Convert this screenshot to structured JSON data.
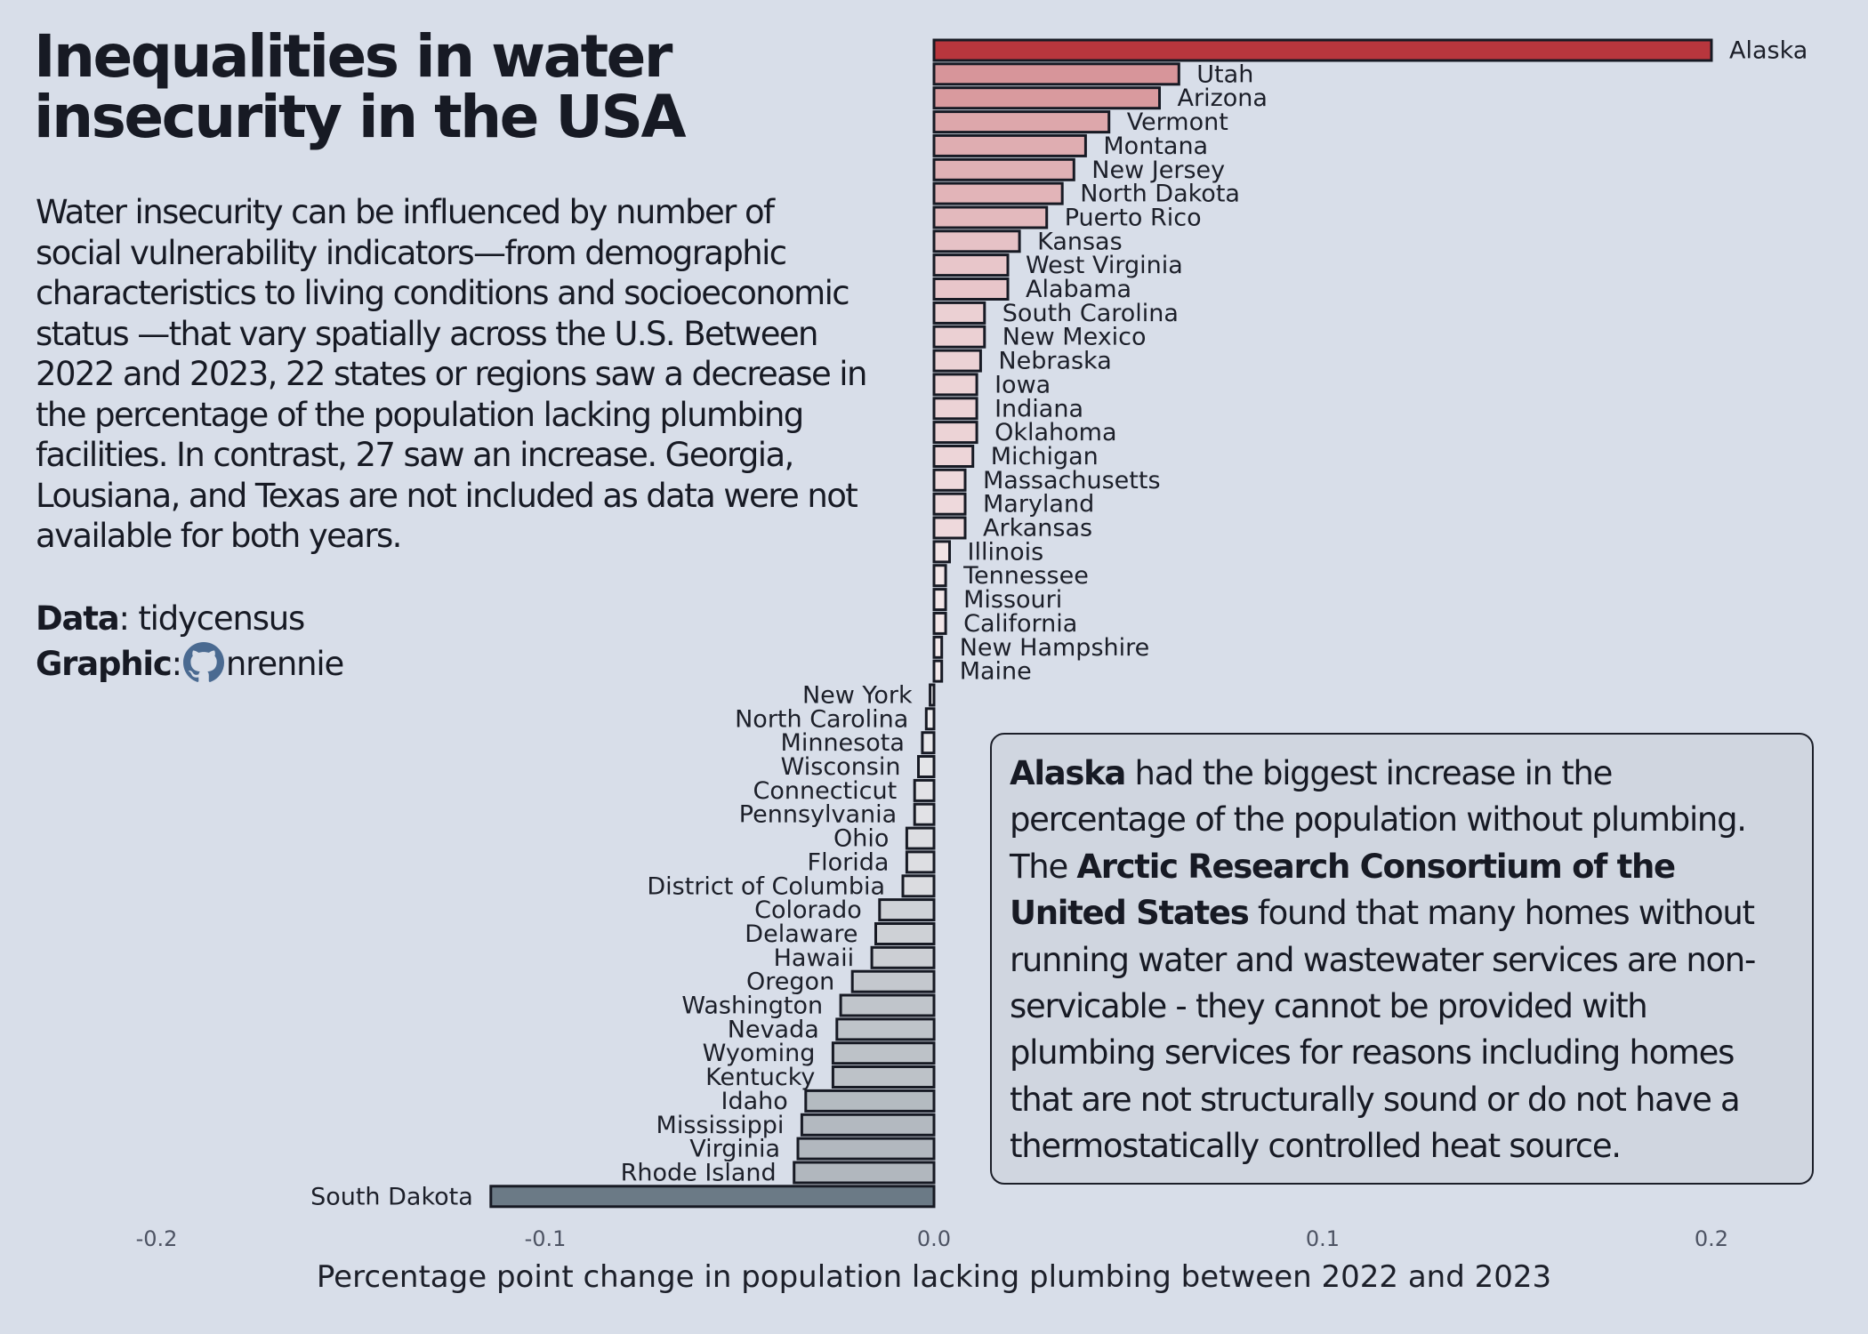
{
  "title": "Inequalities in water insecurity in the USA",
  "subtitle": "Water insecurity can be influenced by number of social vulnerability indicators—from demographic characteristics to living conditions and socioeconomic status —that vary spatially across the U.S. Between 2022 and 2023, 22 states or regions saw a decrease in the percentage of the population lacking plumbing facilities. In contrast, 27 saw an increase. Georgia, Lousiana, and Texas are not included as data were not available for both years.",
  "credits": {
    "data_label": "Data",
    "data_value": "tidycensus",
    "graphic_label": "Graphic",
    "graphic_value": "nrennie",
    "graphic_icon": "github-icon"
  },
  "annotation": {
    "part1_bold": "Alaska",
    "part2": " had the biggest increase in the percentage of the population without plumbing. The ",
    "part3_bold": "Arctic Research Consortium of the United States",
    "part4": " found that many homes without running water and wastewater services are non-servicable - they cannot be provided with plumbing services for reasons including homes that are not structurally sound or do not have a thermostatically controlled heat source."
  },
  "colors": {
    "background": "#d8dee9",
    "max_increase": "#b8363d",
    "max_decrease": "#6b7a86",
    "zero": "#f7f5f7",
    "outline": "#171a24"
  },
  "chart_data": {
    "type": "bar",
    "orientation": "horizontal",
    "sort": "descending",
    "xlabel": "Percentage point change in population lacking plumbing between 2022 and 2023",
    "xlim": [
      -0.2,
      0.2
    ],
    "xticks": [
      -0.2,
      -0.1,
      0.0,
      0.1,
      0.2
    ],
    "xtick_labels": [
      "-0.2",
      "-0.1",
      "0.0",
      "0.1",
      "0.2"
    ],
    "categories": [
      "Alaska",
      "Utah",
      "Arizona",
      "Vermont",
      "Montana",
      "New Jersey",
      "North Dakota",
      "Puerto Rico",
      "Kansas",
      "West Virginia",
      "Alabama",
      "South Carolina",
      "New Mexico",
      "Nebraska",
      "Iowa",
      "Indiana",
      "Oklahoma",
      "Michigan",
      "Massachusetts",
      "Maryland",
      "Arkansas",
      "Illinois",
      "Tennessee",
      "Missouri",
      "California",
      "New Hampshire",
      "Maine",
      "New York",
      "North Carolina",
      "Minnesota",
      "Wisconsin",
      "Connecticut",
      "Pennsylvania",
      "Ohio",
      "Florida",
      "District of Columbia",
      "Colorado",
      "Delaware",
      "Hawaii",
      "Oregon",
      "Washington",
      "Nevada",
      "Wyoming",
      "Kentucky",
      "Idaho",
      "Mississippi",
      "Virginia",
      "Rhode Island",
      "South Dakota"
    ],
    "values": [
      0.2,
      0.063,
      0.058,
      0.045,
      0.039,
      0.036,
      0.033,
      0.029,
      0.022,
      0.019,
      0.019,
      0.013,
      0.013,
      0.012,
      0.011,
      0.011,
      0.011,
      0.01,
      0.008,
      0.008,
      0.008,
      0.004,
      0.003,
      0.003,
      0.003,
      0.002,
      0.002,
      -0.001,
      -0.002,
      -0.003,
      -0.004,
      -0.005,
      -0.005,
      -0.007,
      -0.007,
      -0.008,
      -0.014,
      -0.015,
      -0.016,
      -0.021,
      -0.024,
      -0.025,
      -0.026,
      -0.026,
      -0.033,
      -0.034,
      -0.035,
      -0.036,
      -0.114
    ]
  }
}
